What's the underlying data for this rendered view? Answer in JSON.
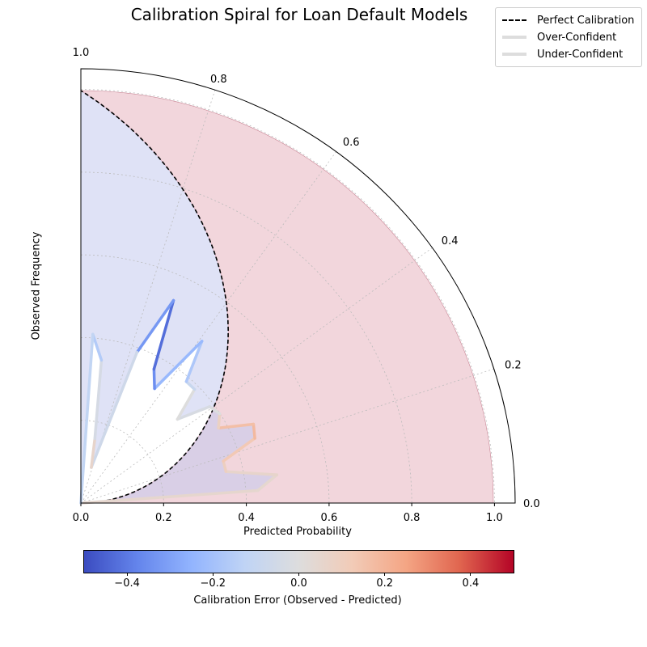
{
  "chart_data": {
    "type": "polar-line",
    "title": "Calibration Spiral for Loan Default Models",
    "xlabel": "Predicted Probability",
    "ylabel": "Observed Frequency",
    "colorbar_label": "Calibration Error (Observed - Predicted)",
    "cartesian_x_ticks": [
      "0.0",
      "0.2",
      "0.4",
      "0.6",
      "0.8",
      "1.0"
    ],
    "theta_ticks": [
      "0.0",
      "0.2",
      "0.4",
      "0.6",
      "0.8",
      "1.0"
    ],
    "colorbar_ticks": [
      "-0.4",
      "-0.2",
      "0.0",
      "0.2",
      "0.4"
    ],
    "colorbar_range": [
      -0.5,
      0.5
    ],
    "colormap": [
      "#3b4cc0",
      "#6485ec",
      "#92b4fe",
      "#c0d4f5",
      "#dddddd",
      "#f2cbb7",
      "#f4a584",
      "#e0654f",
      "#b40426"
    ],
    "legend": [
      {
        "label": "Perfect Calibration",
        "style": "dashed",
        "color": "#000000"
      },
      {
        "label": "Over-Confident",
        "style": "solid",
        "color": "#dddddd"
      },
      {
        "label": "Under-Confident",
        "style": "solid",
        "color": "#dddddd"
      }
    ],
    "over_confident_fill": "#e8b4bf",
    "under_confident_fill": "#c5caee",
    "series": [
      {
        "points": [
          [
            0.0,
            0.0,
            0.0
          ],
          [
            0.045,
            0.43,
            0.1
          ],
          [
            0.091,
            0.48,
            -0.01
          ],
          [
            0.136,
            0.36,
            0.13
          ],
          [
            0.182,
            0.36,
            0.06
          ],
          [
            0.227,
            0.45,
            0.2
          ],
          [
            0.273,
            0.46,
            0.17
          ],
          [
            0.318,
            0.38,
            0.16
          ],
          [
            0.364,
            0.4,
            0.01
          ],
          [
            0.409,
            0.39,
            -0.02
          ],
          [
            0.455,
            0.31,
            -0.03
          ],
          [
            0.5,
            0.39,
            0.03
          ],
          [
            0.545,
            0.39,
            -0.21
          ],
          [
            0.591,
            0.49,
            -0.14
          ],
          [
            0.636,
            0.33,
            -0.32
          ],
          [
            0.682,
            0.37,
            -0.38
          ],
          [
            0.727,
            0.54,
            -0.47
          ],
          [
            0.773,
            0.39,
            -0.18
          ],
          [
            0.818,
            0.09,
            0.05
          ],
          [
            0.864,
            0.16,
            0.07
          ],
          [
            0.909,
            0.35,
            -0.14
          ],
          [
            0.955,
            0.41,
            -0.18
          ],
          [
            1.0,
            0.0,
            -0.05
          ]
        ]
      }
    ]
  }
}
